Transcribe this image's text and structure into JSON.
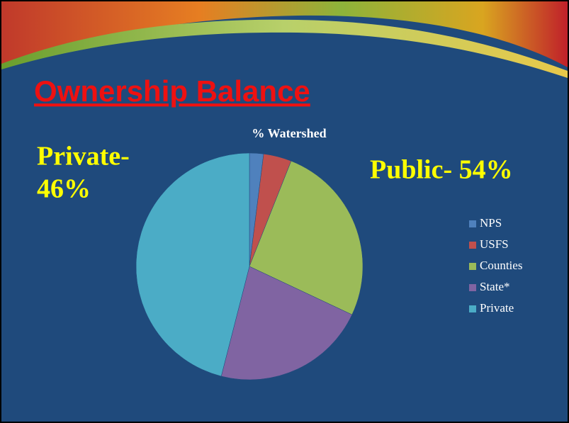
{
  "slide": {
    "title": "Ownership Balance"
  },
  "chart_data": {
    "type": "pie",
    "title": "% Watershed",
    "categories": [
      "NPS",
      "USFS",
      "Counties",
      "State*",
      "Private"
    ],
    "values": [
      2,
      4,
      26,
      22,
      46
    ],
    "colors": [
      "#4f81bd",
      "#c0504d",
      "#9bbb59",
      "#8064a2",
      "#4bacc6"
    ],
    "legend": "right",
    "annotations": [
      "Private-",
      "46%",
      "Public- 54%"
    ]
  }
}
